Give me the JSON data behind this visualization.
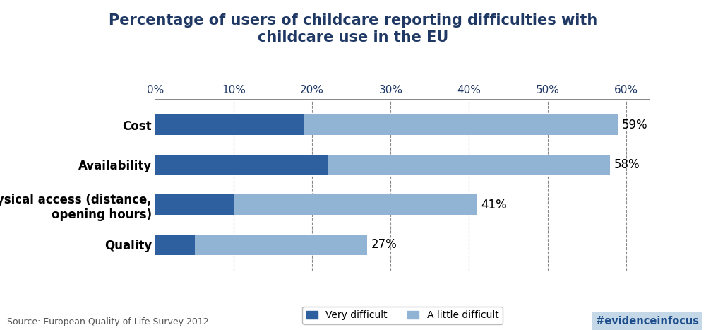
{
  "title": "Percentage of users of childcare reporting difficulties with\nchildcare use in the EU",
  "categories": [
    "Quality",
    "Physical access (distance,\nopening hours)",
    "Availability",
    "Cost"
  ],
  "very_difficult": [
    5,
    10,
    22,
    19
  ],
  "a_little_difficult": [
    22,
    31,
    36,
    40
  ],
  "totals": [
    27,
    41,
    58,
    59
  ],
  "color_very": "#2E5F9E",
  "color_little": "#92B4D4",
  "xlim": [
    0,
    63
  ],
  "xticks": [
    0,
    10,
    20,
    30,
    40,
    50,
    60
  ],
  "source_text": "Source: European Quality of Life Survey 2012",
  "hashtag_text": "#evidenceinfocus",
  "hashtag_bg": "#C5D8E8",
  "hashtag_color": "#1F4E8C",
  "title_color": "#1F3864",
  "title_fontsize": 15,
  "label_fontsize": 12,
  "tick_fontsize": 11,
  "bar_height": 0.52
}
